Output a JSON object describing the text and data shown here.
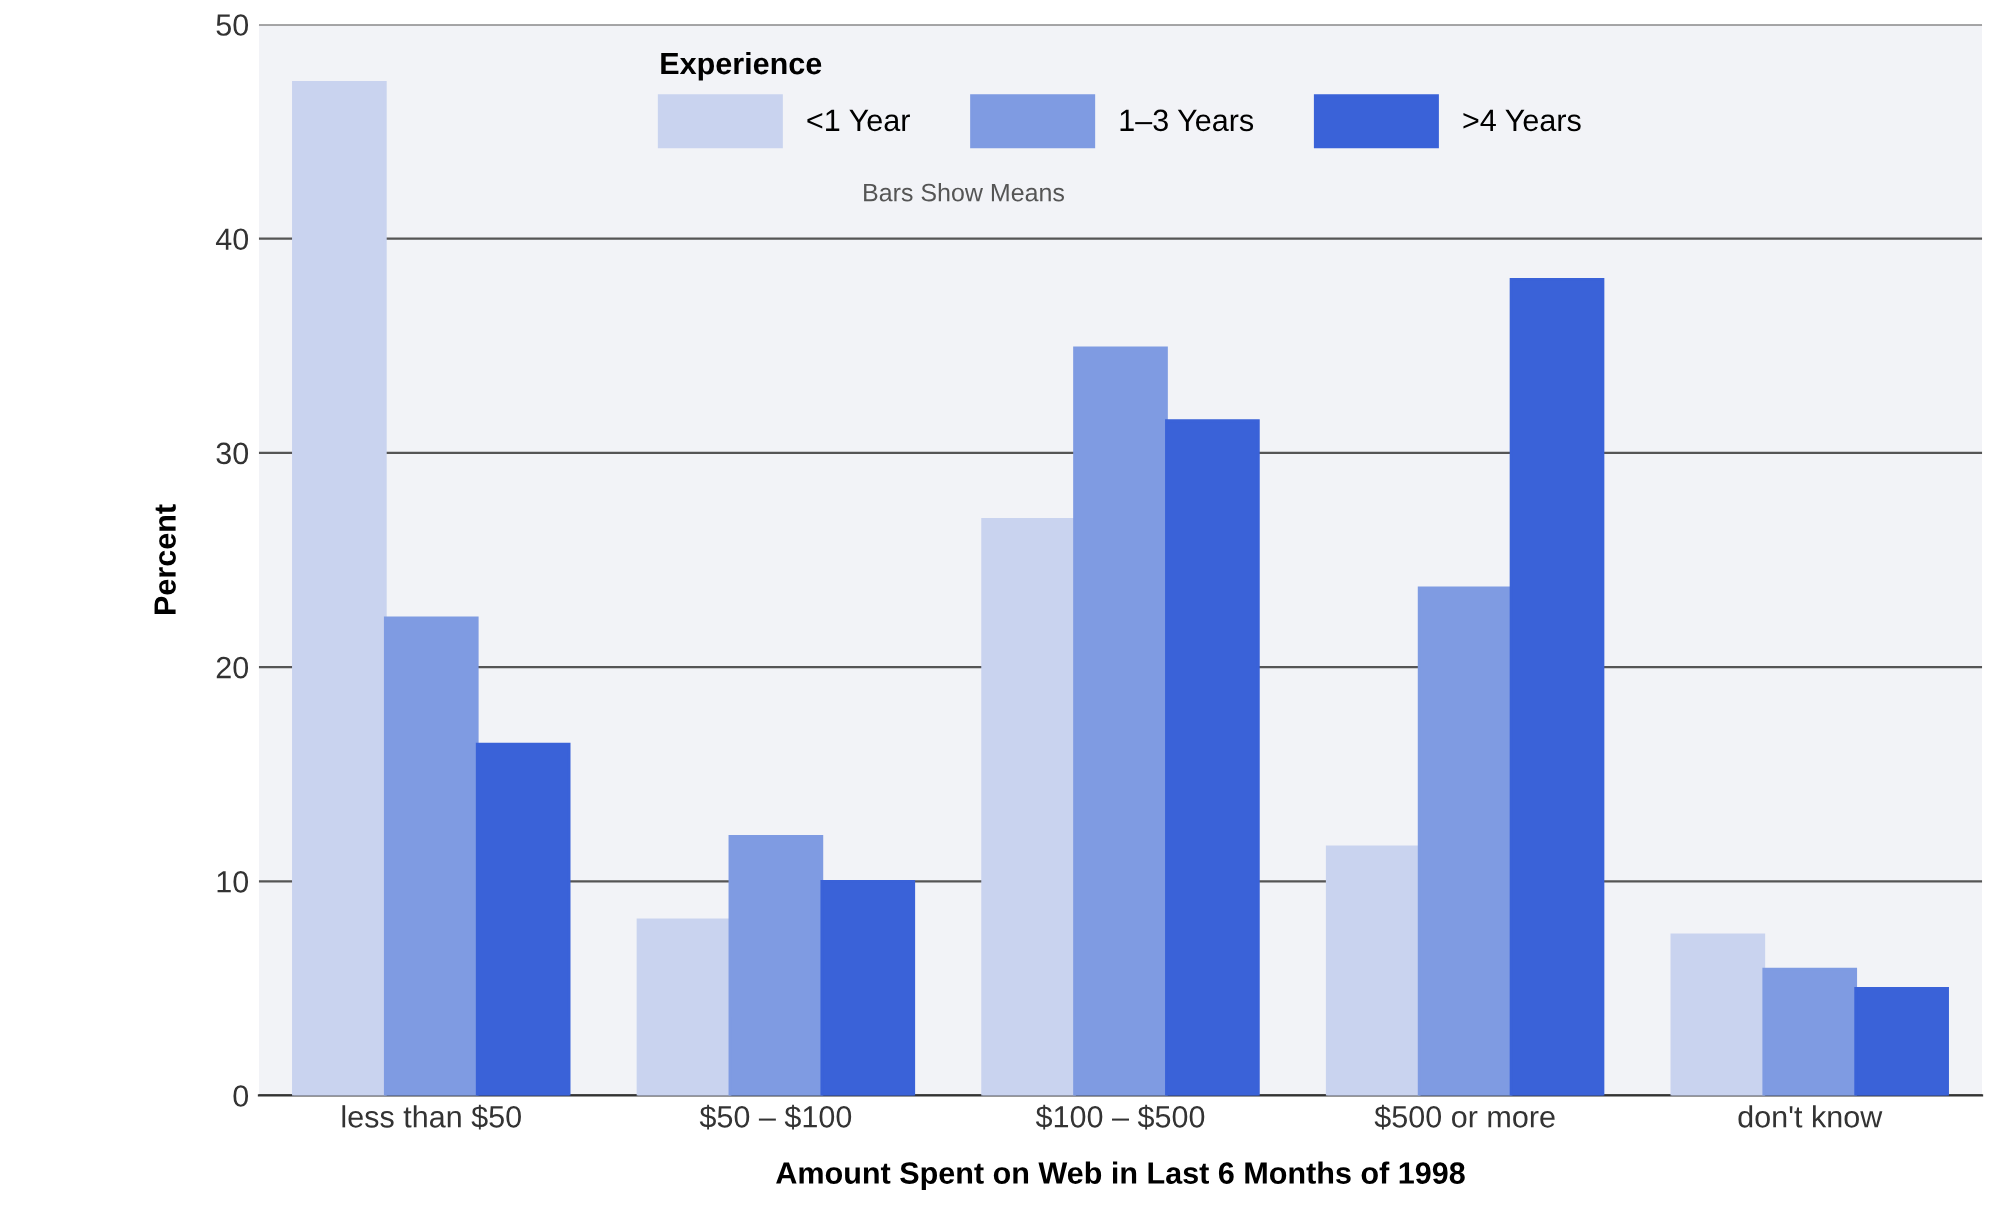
{
  "chart_data": {
    "type": "bar",
    "xlabel": "Amount Spent on Web in Last 6 Months of 1998",
    "ylabel": "Percent",
    "legend_title": "Experience",
    "legend": "top",
    "grid": "y",
    "categories": [
      "less than $50",
      "$50 – $100",
      "$100 – $500",
      "$500 or more",
      "don't know"
    ],
    "series": [
      {
        "name": "<1 Year",
        "color": "#c9d3ef",
        "values": [
          47.3,
          8.2,
          26.9,
          11.6,
          7.5
        ]
      },
      {
        "name": "1–3 Years",
        "color": "#7f9be2",
        "values": [
          22.3,
          12.1,
          34.9,
          23.7,
          5.9
        ]
      },
      {
        "name": ">4 Years",
        "color": "#3a62d8",
        "values": [
          16.4,
          10.0,
          31.5,
          38.1,
          5.0
        ]
      }
    ],
    "ylim": [
      0,
      50
    ],
    "yticks": [
      0,
      10,
      20,
      30,
      40,
      50
    ],
    "annotations": [
      "Bars Show Means"
    ]
  }
}
